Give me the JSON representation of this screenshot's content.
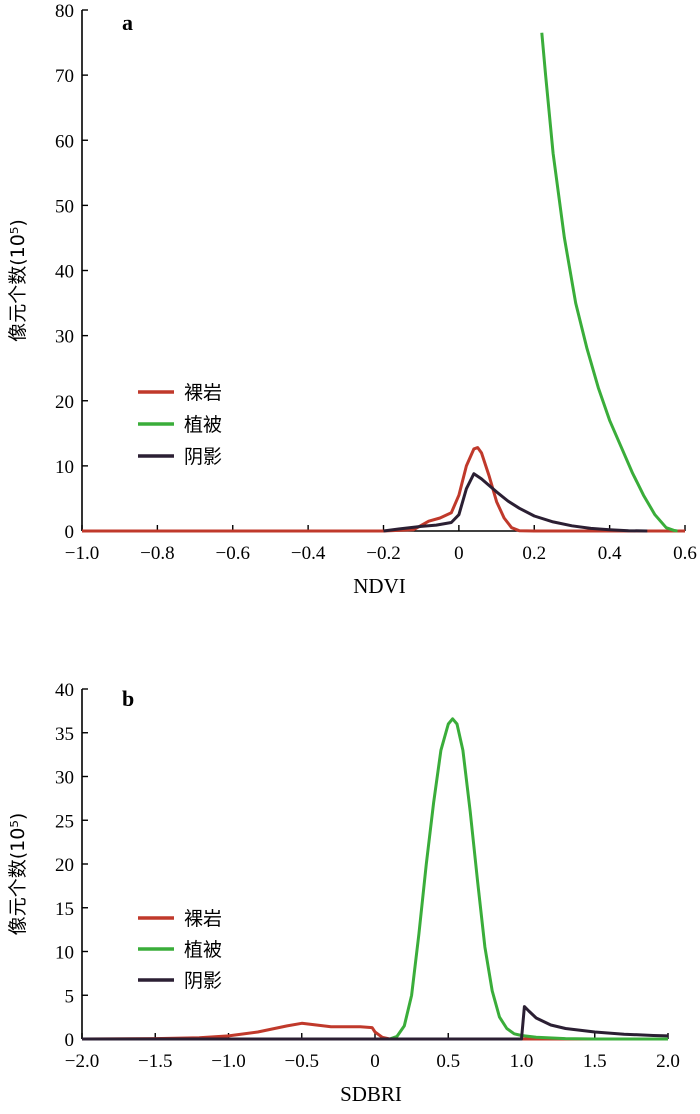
{
  "chart_data": [
    {
      "type": "line",
      "panel_label": "a",
      "xlabel": "NDVI",
      "ylabel": "像元个数(10⁵)",
      "xlim": [
        -1.0,
        0.6
      ],
      "ylim": [
        0,
        80
      ],
      "x_ticks": [
        -1.0,
        -0.8,
        -0.6,
        -0.4,
        -0.2,
        0,
        0.2,
        0.4,
        0.6
      ],
      "x_tick_labels": [
        "−1.0",
        "−0.8",
        "−0.6",
        "−0.4",
        "−0.2",
        "0",
        "0.2",
        "0.4",
        "0.6"
      ],
      "y_ticks": [
        0,
        10,
        20,
        30,
        40,
        50,
        60,
        70,
        80
      ],
      "y_tick_labels": [
        "0",
        "10",
        "20",
        "30",
        "40",
        "50",
        "60",
        "70",
        "80"
      ],
      "legend_position": "left",
      "grid": false,
      "series": [
        {
          "name": "裸岩",
          "color": "#c0392b",
          "points": [
            [
              -1.0,
              0
            ],
            [
              -0.2,
              0
            ],
            [
              -0.12,
              0.2
            ],
            [
              -0.08,
              1.5
            ],
            [
              -0.05,
              2.0
            ],
            [
              -0.02,
              2.8
            ],
            [
              0.0,
              5.5
            ],
            [
              0.02,
              10.0
            ],
            [
              0.04,
              12.6
            ],
            [
              0.05,
              12.8
            ],
            [
              0.06,
              12.0
            ],
            [
              0.08,
              8.5
            ],
            [
              0.1,
              4.5
            ],
            [
              0.12,
              2.0
            ],
            [
              0.14,
              0.5
            ],
            [
              0.16,
              0.05
            ],
            [
              0.2,
              0
            ],
            [
              0.6,
              0
            ]
          ]
        },
        {
          "name": "植被",
          "color": "#3aad3a",
          "points": [
            [
              0.22,
              76.5
            ],
            [
              0.23,
              70.0
            ],
            [
              0.25,
              58.0
            ],
            [
              0.28,
              45.0
            ],
            [
              0.31,
              35.0
            ],
            [
              0.34,
              28.0
            ],
            [
              0.37,
              22.0
            ],
            [
              0.4,
              17.0
            ],
            [
              0.43,
              13.0
            ],
            [
              0.46,
              9.0
            ],
            [
              0.49,
              5.5
            ],
            [
              0.52,
              2.5
            ],
            [
              0.55,
              0.5
            ],
            [
              0.57,
              0.1
            ],
            [
              0.58,
              0
            ]
          ]
        },
        {
          "name": "阴影",
          "color": "#2b1f33",
          "points": [
            [
              -0.2,
              0
            ],
            [
              -0.16,
              0.3
            ],
            [
              -0.1,
              0.7
            ],
            [
              -0.06,
              0.9
            ],
            [
              -0.02,
              1.3
            ],
            [
              0.0,
              2.5
            ],
            [
              0.02,
              6.5
            ],
            [
              0.04,
              8.8
            ],
            [
              0.06,
              8.0
            ],
            [
              0.08,
              7.0
            ],
            [
              0.1,
              6.0
            ],
            [
              0.13,
              4.6
            ],
            [
              0.16,
              3.5
            ],
            [
              0.2,
              2.3
            ],
            [
              0.25,
              1.4
            ],
            [
              0.3,
              0.8
            ],
            [
              0.35,
              0.4
            ],
            [
              0.4,
              0.2
            ],
            [
              0.45,
              0.05
            ],
            [
              0.5,
              0
            ]
          ]
        }
      ]
    },
    {
      "type": "line",
      "panel_label": "b",
      "xlabel": "SDBRI",
      "ylabel": "像元个数(10⁵)",
      "xlim": [
        -2.0,
        2.0
      ],
      "ylim": [
        0,
        40
      ],
      "x_ticks": [
        -2.0,
        -1.5,
        -1.0,
        -0.5,
        0,
        0.5,
        1.0,
        1.5,
        2.0
      ],
      "x_tick_labels": [
        "−2.0",
        "−1.5",
        "−1.0",
        "−0.5",
        "0",
        "0.5",
        "1.0",
        "1.5",
        "2.0"
      ],
      "y_ticks": [
        0,
        5,
        10,
        15,
        20,
        25,
        30,
        35,
        40
      ],
      "y_tick_labels": [
        "0",
        "5",
        "10",
        "15",
        "20",
        "25",
        "30",
        "35",
        "40"
      ],
      "legend_position": "left",
      "grid": false,
      "series": [
        {
          "name": "裸岩",
          "color": "#c0392b",
          "points": [
            [
              -2.0,
              0
            ],
            [
              -1.5,
              0.05
            ],
            [
              -1.2,
              0.15
            ],
            [
              -1.0,
              0.35
            ],
            [
              -0.8,
              0.8
            ],
            [
              -0.6,
              1.5
            ],
            [
              -0.5,
              1.8
            ],
            [
              -0.4,
              1.6
            ],
            [
              -0.3,
              1.4
            ],
            [
              -0.1,
              1.4
            ],
            [
              -0.02,
              1.3
            ],
            [
              0.0,
              0.8
            ],
            [
              0.05,
              0.2
            ],
            [
              0.1,
              0
            ],
            [
              2.0,
              0
            ]
          ]
        },
        {
          "name": "植被",
          "color": "#3aad3a",
          "points": [
            [
              -2.0,
              0
            ],
            [
              0.1,
              0
            ],
            [
              0.15,
              0.3
            ],
            [
              0.2,
              1.5
            ],
            [
              0.25,
              5.0
            ],
            [
              0.3,
              12.0
            ],
            [
              0.35,
              20.0
            ],
            [
              0.4,
              27.0
            ],
            [
              0.45,
              33.0
            ],
            [
              0.5,
              36.0
            ],
            [
              0.53,
              36.6
            ],
            [
              0.56,
              36.0
            ],
            [
              0.6,
              33.0
            ],
            [
              0.65,
              26.0
            ],
            [
              0.7,
              18.0
            ],
            [
              0.75,
              10.5
            ],
            [
              0.8,
              5.5
            ],
            [
              0.85,
              2.5
            ],
            [
              0.9,
              1.2
            ],
            [
              0.95,
              0.6
            ],
            [
              1.0,
              0.4
            ],
            [
              1.1,
              0.2
            ],
            [
              1.3,
              0.05
            ],
            [
              1.5,
              0
            ],
            [
              2.0,
              0
            ]
          ]
        },
        {
          "name": "阴影",
          "color": "#2b1f33",
          "points": [
            [
              -2.0,
              0
            ],
            [
              1.0,
              0
            ],
            [
              1.02,
              3.7
            ],
            [
              1.05,
              3.2
            ],
            [
              1.1,
              2.4
            ],
            [
              1.2,
              1.6
            ],
            [
              1.3,
              1.2
            ],
            [
              1.5,
              0.8
            ],
            [
              1.7,
              0.55
            ],
            [
              1.9,
              0.4
            ],
            [
              2.0,
              0.35
            ]
          ]
        }
      ]
    }
  ]
}
